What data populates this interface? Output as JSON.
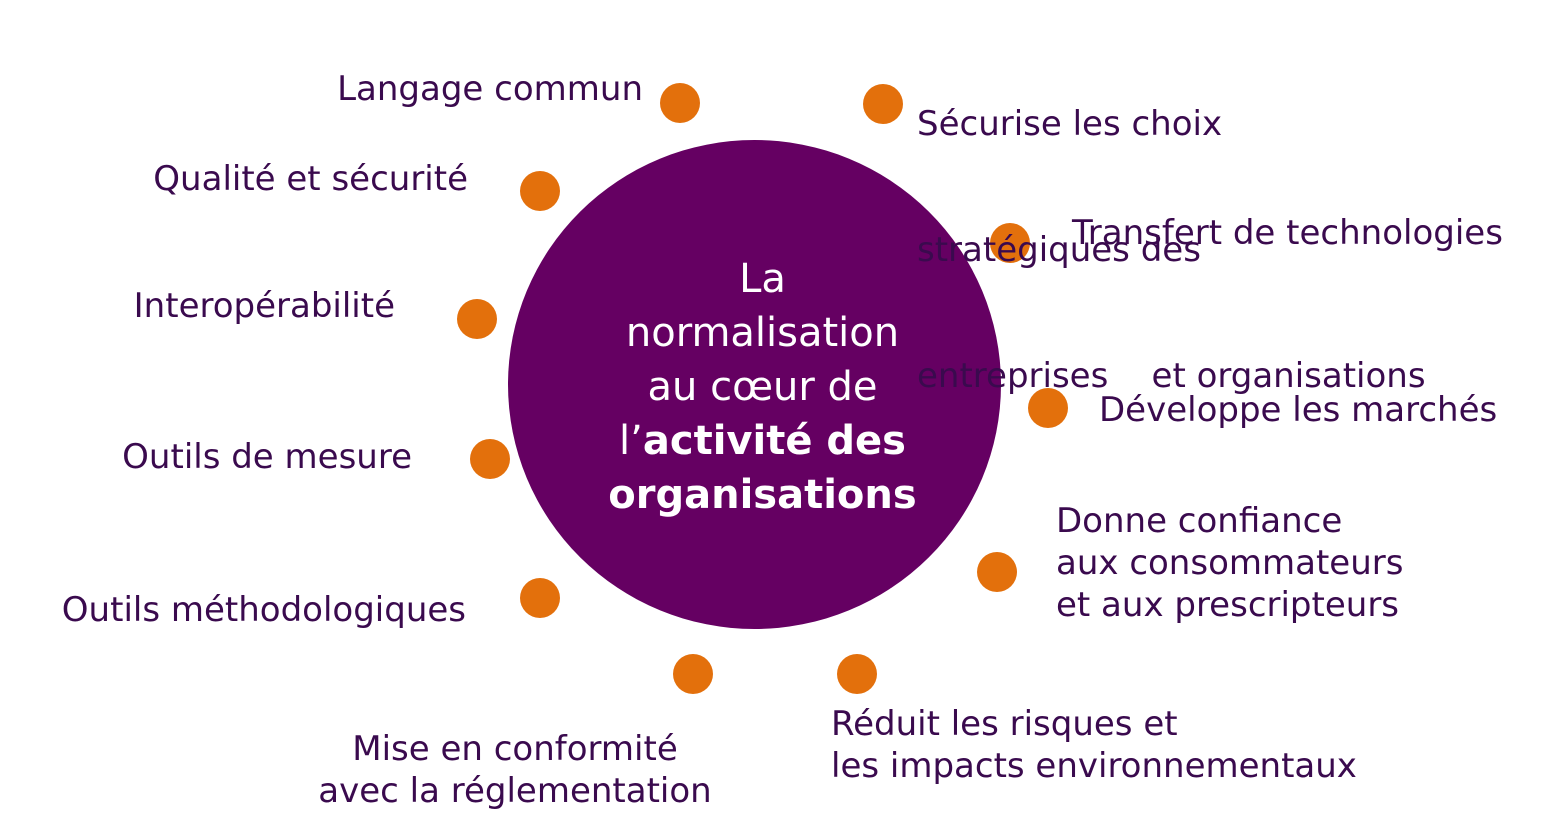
{
  "colors": {
    "circle": "#650062",
    "dot": "#E3700C",
    "label_text": "#3A0A4E",
    "center_text": "#FFFFFF"
  },
  "center": {
    "line1": "La",
    "line2": "normalisation",
    "line3": "au cœur de",
    "line4_prefix": "l’",
    "line4_bold": "activité des",
    "line5_bold": "organisations"
  },
  "left_labels": {
    "langage": "Langage commun",
    "qualite": "Qualité et sécurité",
    "interop": "Interopérabilité",
    "mesure": "Outils de mesure",
    "methodo": "Outils méthodologiques",
    "conformite_1": "Mise en conformité",
    "conformite_2": "avec la réglementation"
  },
  "right_labels": {
    "securise_1": "Sécurise les choix",
    "securise_2": "stratégiques des",
    "securise_3": "entreprises    et organisations",
    "transfert": "Transfert de technologies",
    "marches": "Développe les marchés",
    "confiance_1": "Donne confiance",
    "confiance_2": "aux consommateurs",
    "confiance_3": "et aux prescripteurs",
    "risques_1": "Réduit les risques et",
    "risques_2": "les impacts environnementaux"
  }
}
